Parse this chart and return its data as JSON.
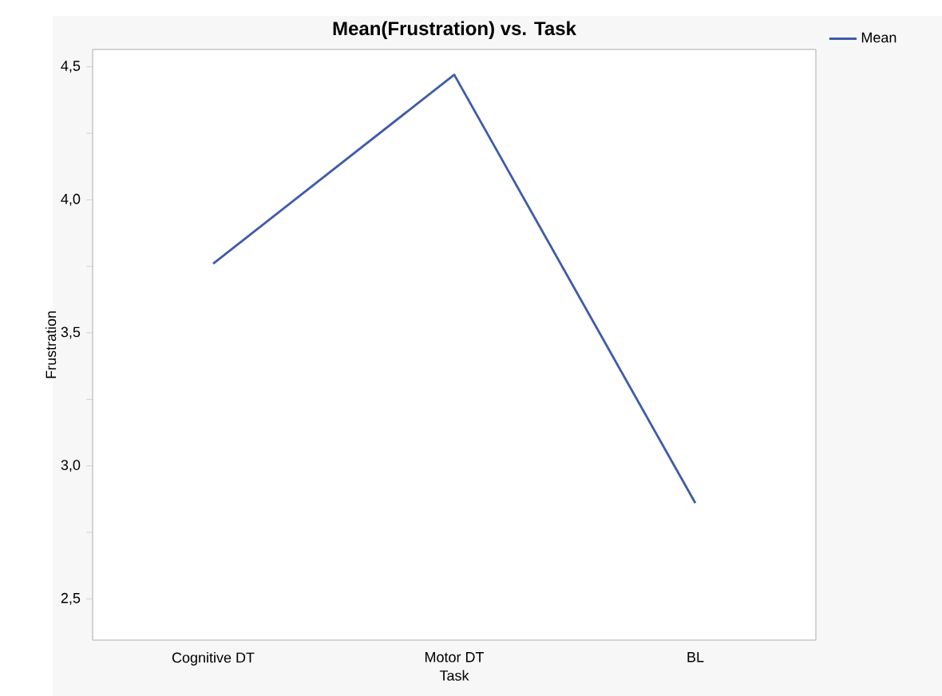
{
  "chart_data": {
    "type": "line",
    "title": "Mean(Frustration) vs. Task",
    "xlabel": "Task",
    "ylabel": "Frustration",
    "categories": [
      "Cognitive DT",
      "Motor DT",
      "BL"
    ],
    "series": [
      {
        "name": "Mean",
        "color": "#3f5ba9",
        "values": [
          3.76,
          4.47,
          2.86
        ]
      }
    ],
    "ylim": [
      2.345,
      4.565
    ],
    "yticks": [
      {
        "value": 2.5,
        "label": "2,5"
      },
      {
        "value": 2.75,
        "label": null
      },
      {
        "value": 3.0,
        "label": "3,0"
      },
      {
        "value": 3.25,
        "label": null
      },
      {
        "value": 3.5,
        "label": "3,5"
      },
      {
        "value": 3.75,
        "label": null
      },
      {
        "value": 4.0,
        "label": "4,0"
      },
      {
        "value": 4.25,
        "label": null
      },
      {
        "value": 4.5,
        "label": "4,5"
      }
    ],
    "grid": false,
    "legend": "top right",
    "marker": "none",
    "line_style": "solid"
  }
}
